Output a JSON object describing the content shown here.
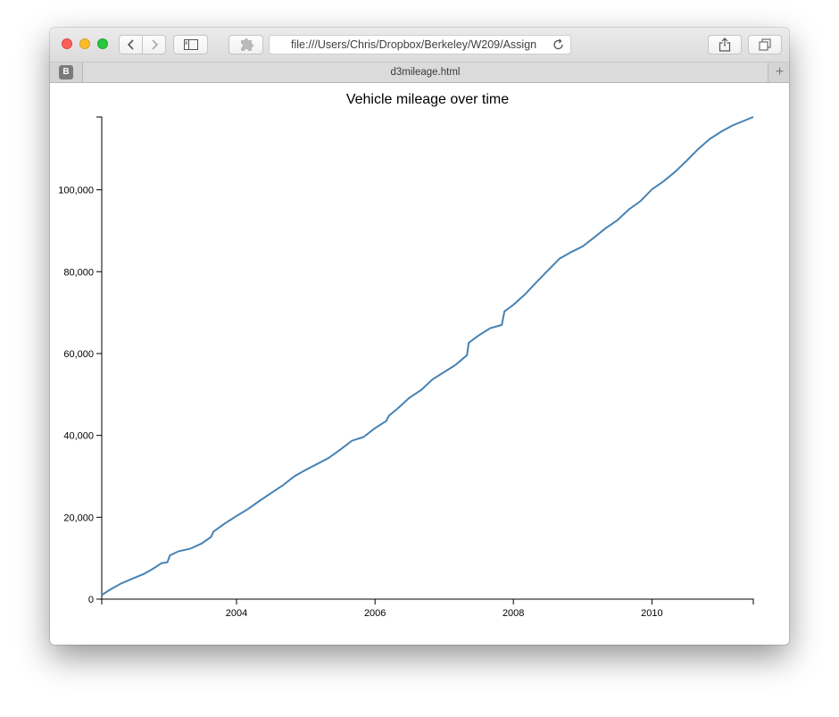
{
  "browser": {
    "address_text": "file:///Users/Chris/Dropbox/Berkeley/W209/Assign",
    "tab_title": "d3mileage.html",
    "favicon_letter": "B",
    "new_tab_label": "+"
  },
  "icons": {
    "back": "chevron-left-icon",
    "forward": "chevron-right-icon",
    "sidebar": "sidebar-icon",
    "extensions": "puzzle-icon",
    "reload": "reload-icon",
    "share": "share-icon",
    "tabs": "tabs-overview-icon"
  },
  "colors": {
    "line": "#4682b4",
    "axis": "#000000"
  },
  "chart_data": {
    "type": "line",
    "title": "Vehicle mileage over time",
    "xlabel": "",
    "ylabel": "",
    "x_domain": [
      "2002-01-20",
      "2011-06-20"
    ],
    "ylim": [
      0,
      117800
    ],
    "x_ticks": [
      "2004",
      "2006",
      "2008",
      "2010"
    ],
    "y_ticks": [
      "0",
      "20,000",
      "40,000",
      "60,000",
      "80,000",
      "100,000"
    ],
    "grid": false,
    "series": [
      {
        "x": [
          "2002-01-20",
          "2002-03-01",
          "2002-05-01",
          "2002-07-01",
          "2002-09-01",
          "2002-10-20",
          "2002-12-01",
          "2003-01-01",
          "2003-01-15",
          "2003-03-01",
          "2003-05-01",
          "2003-07-01",
          "2003-08-20",
          "2003-09-01",
          "2003-11-01",
          "2004-01-01",
          "2004-03-01",
          "2004-05-01",
          "2004-07-01",
          "2004-09-01",
          "2004-11-01",
          "2005-01-01",
          "2005-03-01",
          "2005-05-01",
          "2005-07-01",
          "2005-09-01",
          "2005-11-01",
          "2006-01-01",
          "2006-03-01",
          "2006-03-15",
          "2006-05-01",
          "2006-07-01",
          "2006-09-01",
          "2006-11-01",
          "2007-01-01",
          "2007-03-01",
          "2007-05-01",
          "2007-05-10",
          "2007-07-01",
          "2007-09-01",
          "2007-11-01",
          "2007-11-15",
          "2008-01-01",
          "2008-03-01",
          "2008-05-01",
          "2008-07-01",
          "2008-09-01",
          "2008-11-01",
          "2009-01-01",
          "2009-03-01",
          "2009-05-01",
          "2009-07-01",
          "2009-09-01",
          "2009-11-01",
          "2010-01-01",
          "2010-03-01",
          "2010-05-01",
          "2010-07-01",
          "2010-09-01",
          "2010-11-01",
          "2011-01-01",
          "2011-03-01",
          "2011-06-20"
        ],
        "y": [
          1000,
          2200,
          3800,
          5000,
          6200,
          7500,
          8800,
          9000,
          10700,
          11700,
          12300,
          13600,
          15200,
          16500,
          18500,
          20300,
          22000,
          24000,
          25900,
          27800,
          30000,
          31600,
          33000,
          34500,
          36500,
          38700,
          39600,
          41800,
          43500,
          44800,
          46600,
          49200,
          51100,
          53700,
          55500,
          57200,
          59600,
          62600,
          64400,
          66200,
          67000,
          70300,
          71900,
          74400,
          77400,
          80300,
          83200,
          84800,
          86200,
          88300,
          90600,
          92500,
          95200,
          97200,
          100100,
          102000,
          104300,
          107000,
          109900,
          112400,
          114200,
          115700,
          117800
        ]
      }
    ]
  }
}
